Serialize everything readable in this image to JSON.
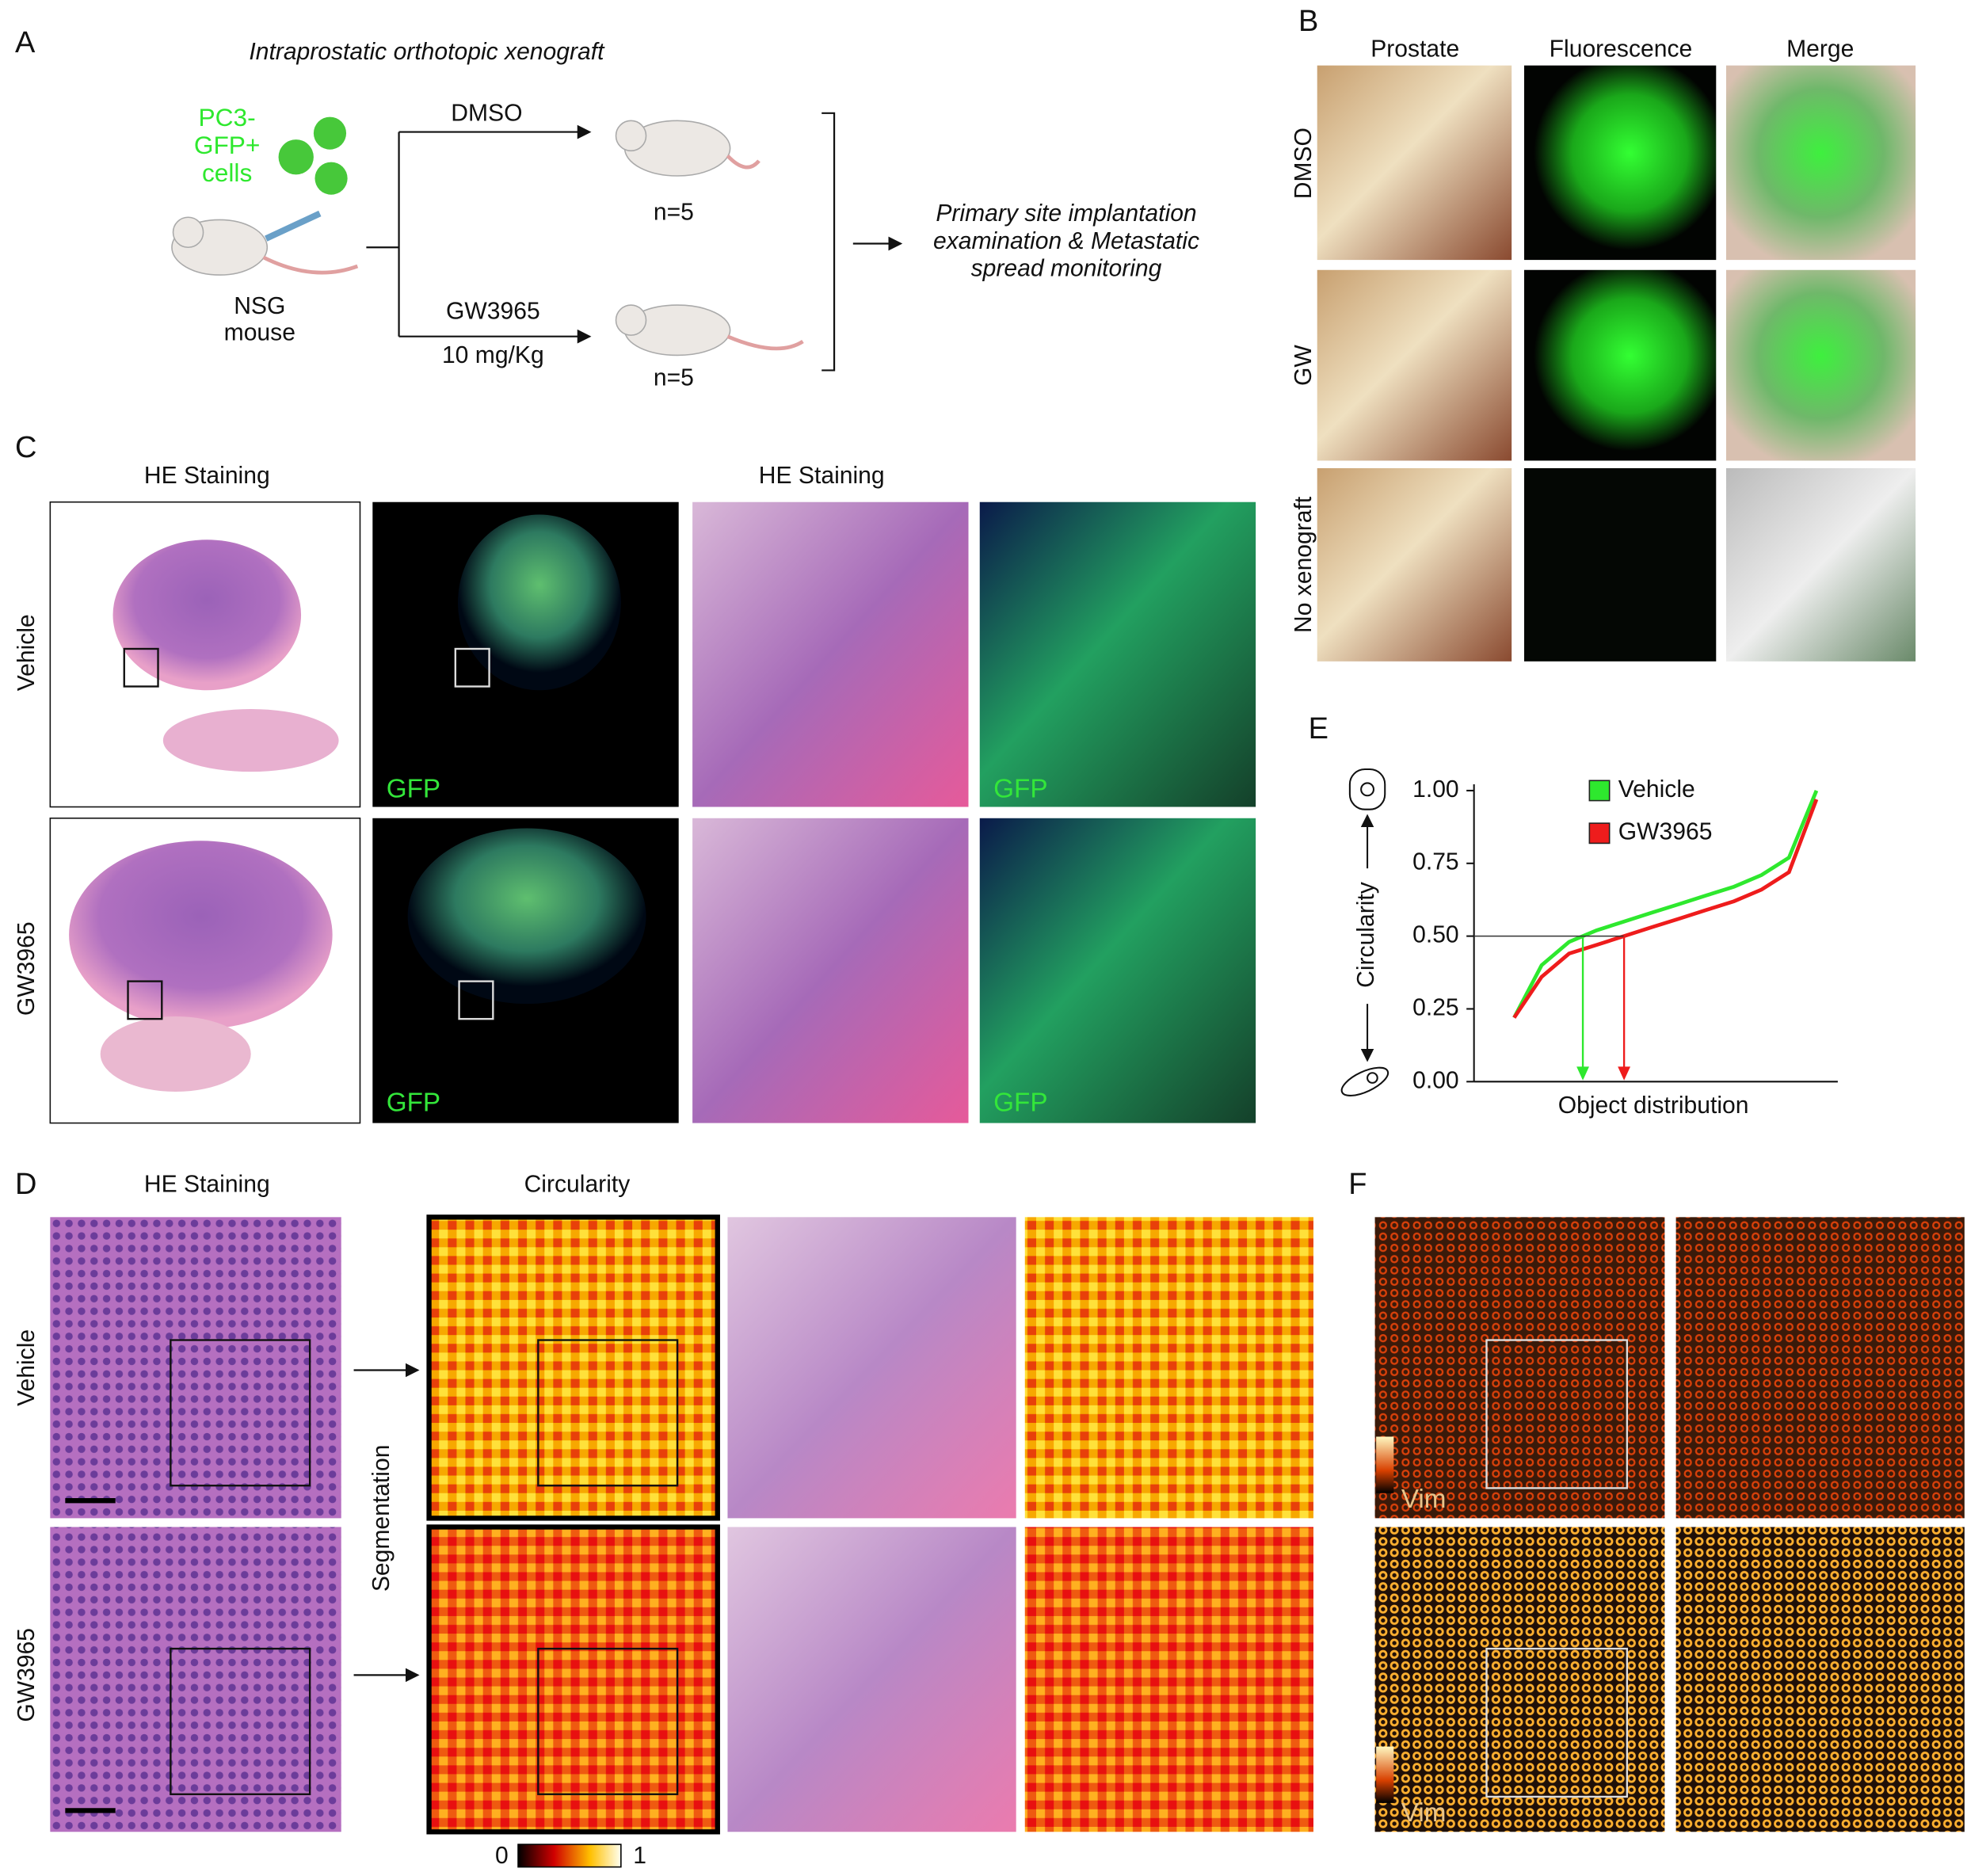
{
  "panel_a": {
    "letter": "A",
    "title": "Intraprostatic orthotopic xenograft",
    "cells_label": [
      "PC3-",
      "GFP+",
      "cells"
    ],
    "mouse_label": [
      "NSG",
      "mouse"
    ],
    "arm_1": {
      "treatment": "DMSO",
      "n": "n=5"
    },
    "arm_2": {
      "treatment": "GW3965",
      "dose": "10 mg/Kg",
      "n": "n=5"
    },
    "outcome": [
      "Primary site implantation",
      "examination & Metastatic",
      "spread monitoring"
    ]
  },
  "panel_b": {
    "letter": "B",
    "columns": [
      "Prostate",
      "Fluorescence",
      "Merge"
    ],
    "rows": [
      "DMSO",
      "GW",
      "No xenograft"
    ]
  },
  "panel_c": {
    "letter": "C",
    "headers": [
      "HE Staining",
      "HE Staining"
    ],
    "rows": [
      "Vehicle",
      "GW3965"
    ],
    "gfp_labels": [
      "GFP",
      "GFP",
      "GFP",
      "GFP"
    ]
  },
  "panel_d": {
    "letter": "D",
    "headers": [
      "HE Staining",
      "Circularity"
    ],
    "rows": [
      "Vehicle",
      "GW3965"
    ],
    "segmentation": "Segmentation",
    "colorbar": [
      "0",
      "1"
    ]
  },
  "panel_e": {
    "letter": "E"
  },
  "chart_data": {
    "type": "line",
    "ylabel": "Circularity",
    "xlabel": "Object distribution",
    "categories": [
      null,
      null,
      null,
      null,
      null,
      null,
      null,
      null,
      null,
      null,
      null,
      null
    ],
    "series": [
      {
        "name": "Vehicle",
        "color": "#2ee82e",
        "values": [
          0.22,
          0.4,
          0.48,
          0.52,
          0.55,
          0.58,
          0.61,
          0.64,
          0.67,
          0.71,
          0.77,
          1.0
        ]
      },
      {
        "name": "GW3965",
        "color": "#ee1c1c",
        "values": [
          0.22,
          0.36,
          0.44,
          0.47,
          0.5,
          0.53,
          0.56,
          0.59,
          0.62,
          0.66,
          0.72,
          0.97
        ]
      }
    ],
    "ylim": [
      0,
      1
    ],
    "yticks": [
      {
        "value": 0,
        "label": "0.00"
      },
      {
        "value": 0.25,
        "label": "0.25"
      },
      {
        "value": 0.5,
        "label": "0.50"
      },
      {
        "value": 0.75,
        "label": "0.75"
      },
      {
        "value": 1,
        "label": "1.00"
      }
    ],
    "hline": 0.5
  },
  "panel_f": {
    "letter": "F",
    "labels": [
      "Vim",
      "Vim"
    ]
  }
}
